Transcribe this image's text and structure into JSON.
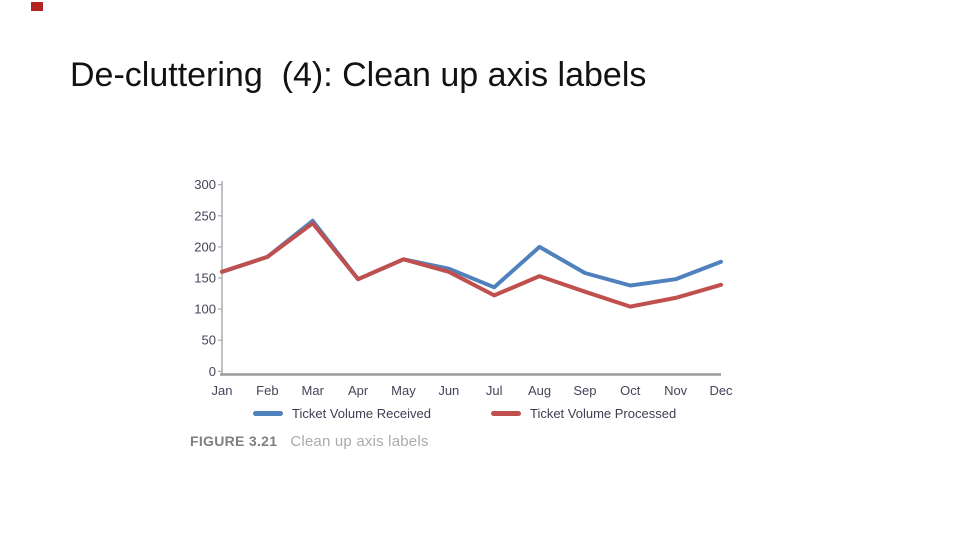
{
  "slide": {
    "title": "De-cluttering  (4): Clean up axis labels",
    "marker_color": "#b32323",
    "background": "#ffffff"
  },
  "figure": {
    "caption_label": "FIGURE 3.21",
    "caption_text": "Clean up axis labels"
  },
  "chart_data": {
    "type": "line",
    "title": "",
    "xlabel": "",
    "ylabel": "",
    "categories": [
      "Jan",
      "Feb",
      "Mar",
      "Apr",
      "May",
      "Jun",
      "Jul",
      "Aug",
      "Sep",
      "Oct",
      "Nov",
      "Dec"
    ],
    "series": [
      {
        "name": "Ticket Volume Received",
        "color": "#4F81BD",
        "values": [
          160,
          184,
          242,
          148,
          180,
          165,
          135,
          200,
          158,
          138,
          148,
          176
        ]
      },
      {
        "name": "Ticket Volume Processed",
        "color": "#C0504D",
        "values": [
          160,
          184,
          238,
          148,
          180,
          160,
          122,
          153,
          128,
          104,
          118,
          139
        ]
      }
    ],
    "ylim": [
      0,
      300
    ],
    "yticks": [
      0,
      50,
      100,
      150,
      200,
      250,
      300
    ],
    "grid": false,
    "legend_position": "bottom",
    "axis_color": "#a8a8a8",
    "tick_label_color": "#44445a"
  }
}
